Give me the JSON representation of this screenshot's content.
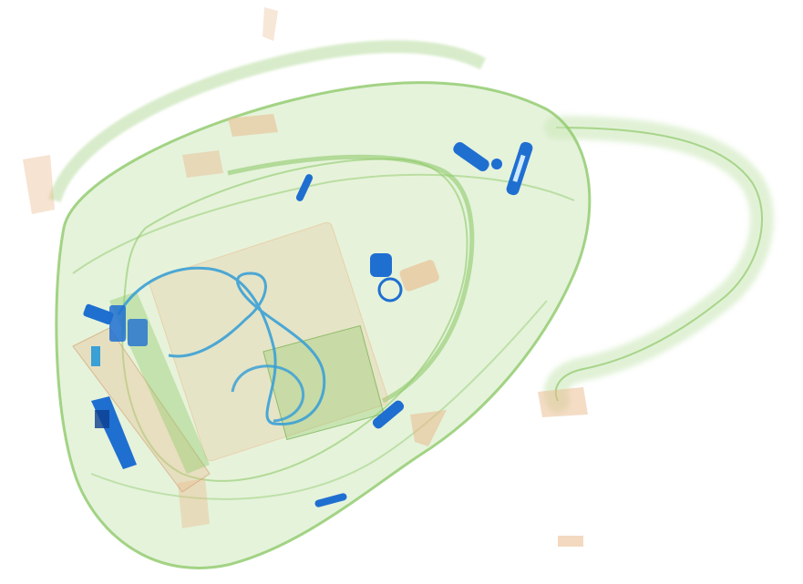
{
  "scene": {
    "description_kind": "xray-scan",
    "colors": {
      "background": "#ffffff",
      "organic": "#e9b98c",
      "inorganic": "#8fc96a",
      "inorganic_light": "#bfe3a6",
      "metal": "#1f6fd1",
      "metal_dark": "#0b3f8f",
      "cable": "#3aa0d6"
    }
  }
}
